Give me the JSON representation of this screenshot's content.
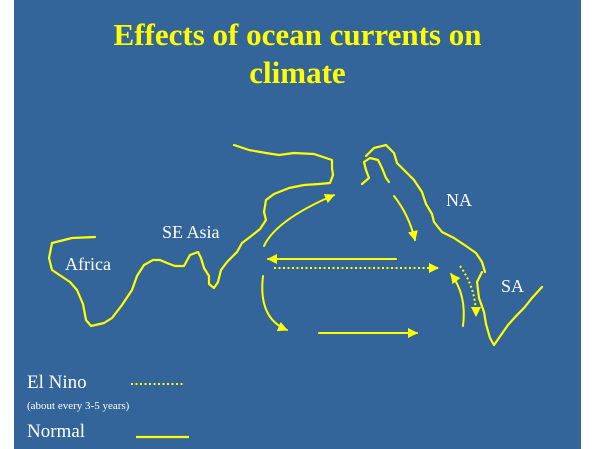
{
  "title": {
    "line1": "Effects of ocean currents on",
    "line2": "climate"
  },
  "labels": {
    "africa": "Africa",
    "se_asia": "SE Asia",
    "na": "NA",
    "sa": "SA"
  },
  "legend": {
    "el_nino": "El Nino",
    "el_nino_note": "(about every 3-5 years)",
    "normal": "Normal"
  },
  "colors": {
    "background": "#33659b",
    "title": "#ffff00",
    "coastline": "#ffff00",
    "arrow": "#ffff00",
    "label": "#ffffff"
  }
}
